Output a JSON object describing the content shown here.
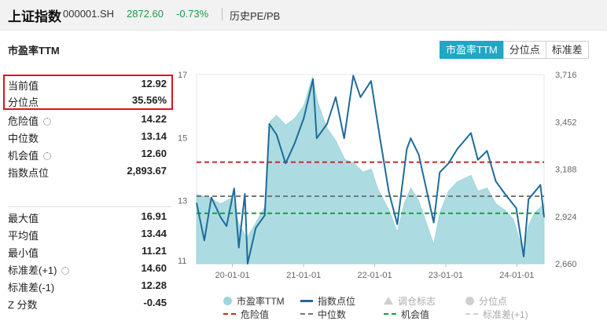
{
  "header": {
    "name": "上证指数",
    "code": "000001.SH",
    "price": "2872.60",
    "change": "-0.73%",
    "pe_link": "历史PE/PB"
  },
  "section_title": "市盈率TTM",
  "tabs": [
    {
      "label": "市盈率TTM",
      "active": true
    },
    {
      "label": "分位点",
      "active": false
    },
    {
      "label": "标准差",
      "active": false
    }
  ],
  "metrics": [
    {
      "label": "当前值",
      "value": "12.92"
    },
    {
      "label": "分位点",
      "value": "35.56%"
    },
    {
      "label": "危险值",
      "value": "14.22",
      "gear": true
    },
    {
      "label": "中位数",
      "value": "13.14"
    },
    {
      "label": "机会值",
      "value": "12.60",
      "gear": true
    },
    {
      "label": "指数点位",
      "value": "2,893.67"
    }
  ],
  "stats": [
    {
      "label": "最大值",
      "value": "16.91"
    },
    {
      "label": "平均值",
      "value": "13.44"
    },
    {
      "label": "最小值",
      "value": "11.21"
    },
    {
      "label": "标准差(+1)",
      "value": "14.60",
      "gear": true
    },
    {
      "label": "标准差(-1)",
      "value": "12.28"
    },
    {
      "label": "Z 分数",
      "value": "-0.45"
    }
  ],
  "colors": {
    "accent": "#1fa7c4",
    "area": "#9dd6dc",
    "index_line": "#1f6b9a",
    "danger": "#c62828",
    "median": "#777777",
    "opportunity": "#1a9a4a",
    "down": "#1a9a4a"
  },
  "chart_data": {
    "type": "line",
    "x_tick_labels": [
      "20-01-01",
      "21-01-01",
      "22-01-01",
      "23-01-01",
      "24-01-01"
    ],
    "x_range": [
      "2019-07-01",
      "2024-05-20"
    ],
    "left_axis": {
      "ticks": [
        "17",
        "15",
        "13",
        "11"
      ],
      "range": [
        11,
        17
      ]
    },
    "right_axis": {
      "ticks": [
        "3,716",
        "3,452",
        "3,188",
        "2,924",
        "2,660"
      ],
      "range": [
        2660,
        3716
      ]
    },
    "thresholds": {
      "danger": 14.22,
      "median": 13.14,
      "opportunity": 12.6
    },
    "series": [
      {
        "name": "市盈率TTM",
        "kind": "area",
        "axis": "left",
        "points": [
          [
            "2019-07-01",
            13.2
          ],
          [
            "2019-09-01",
            13.1
          ],
          [
            "2019-11-01",
            12.9
          ],
          [
            "2020-01-01",
            13.1
          ],
          [
            "2020-02-01",
            12.3
          ],
          [
            "2020-03-15",
            11.8
          ],
          [
            "2020-05-01",
            12.3
          ],
          [
            "2020-06-15",
            12.8
          ],
          [
            "2020-07-10",
            15.5
          ],
          [
            "2020-08-15",
            15.7
          ],
          [
            "2020-10-01",
            15.4
          ],
          [
            "2020-11-15",
            15.6
          ],
          [
            "2021-01-01",
            16.0
          ],
          [
            "2021-02-15",
            16.9
          ],
          [
            "2021-03-15",
            16.1
          ],
          [
            "2021-05-01",
            15.3
          ],
          [
            "2021-06-15",
            14.9
          ],
          [
            "2021-08-01",
            14.3
          ],
          [
            "2021-09-15",
            14.2
          ],
          [
            "2021-11-01",
            13.9
          ],
          [
            "2021-12-15",
            14.0
          ],
          [
            "2022-01-15",
            13.4
          ],
          [
            "2022-03-15",
            12.7
          ],
          [
            "2022-04-27",
            12.0
          ],
          [
            "2022-06-01",
            12.9
          ],
          [
            "2022-07-05",
            13.4
          ],
          [
            "2022-08-15",
            13.0
          ],
          [
            "2022-10-31",
            11.6
          ],
          [
            "2022-12-01",
            12.6
          ],
          [
            "2023-01-15",
            13.3
          ],
          [
            "2023-03-01",
            13.6
          ],
          [
            "2023-05-10",
            13.8
          ],
          [
            "2023-06-15",
            13.3
          ],
          [
            "2023-08-01",
            13.4
          ],
          [
            "2023-09-15",
            12.9
          ],
          [
            "2023-11-01",
            12.7
          ],
          [
            "2023-12-15",
            12.4
          ],
          [
            "2024-02-05",
            11.3
          ],
          [
            "2024-03-01",
            12.2
          ],
          [
            "2024-04-01",
            12.6
          ],
          [
            "2024-05-20",
            12.9
          ]
        ]
      },
      {
        "name": "指数点位",
        "kind": "line",
        "axis": "right",
        "points": [
          [
            "2019-07-01",
            3000
          ],
          [
            "2019-08-10",
            2790
          ],
          [
            "2019-09-15",
            3030
          ],
          [
            "2019-11-01",
            2920
          ],
          [
            "2019-12-02",
            2870
          ],
          [
            "2020-01-10",
            3080
          ],
          [
            "2020-02-03",
            2750
          ],
          [
            "2020-03-05",
            3050
          ],
          [
            "2020-03-19",
            2660
          ],
          [
            "2020-04-30",
            2860
          ],
          [
            "2020-06-15",
            2930
          ],
          [
            "2020-07-09",
            3440
          ],
          [
            "2020-08-15",
            3380
          ],
          [
            "2020-09-30",
            3220
          ],
          [
            "2020-11-15",
            3330
          ],
          [
            "2021-01-01",
            3470
          ],
          [
            "2021-02-18",
            3690
          ],
          [
            "2021-03-09",
            3360
          ],
          [
            "2021-05-01",
            3440
          ],
          [
            "2021-06-15",
            3590
          ],
          [
            "2021-07-28",
            3360
          ],
          [
            "2021-09-13",
            3710
          ],
          [
            "2021-10-20",
            3590
          ],
          [
            "2021-12-13",
            3680
          ],
          [
            "2022-01-28",
            3360
          ],
          [
            "2022-03-15",
            3060
          ],
          [
            "2022-04-27",
            2880
          ],
          [
            "2022-06-15",
            3300
          ],
          [
            "2022-07-05",
            3360
          ],
          [
            "2022-08-15",
            3270
          ],
          [
            "2022-10-31",
            2890
          ],
          [
            "2022-12-01",
            3170
          ],
          [
            "2023-01-15",
            3220
          ],
          [
            "2023-03-01",
            3300
          ],
          [
            "2023-05-10",
            3390
          ],
          [
            "2023-06-15",
            3240
          ],
          [
            "2023-08-01",
            3290
          ],
          [
            "2023-09-15",
            3120
          ],
          [
            "2023-11-01",
            3050
          ],
          [
            "2023-12-29",
            2970
          ],
          [
            "2024-02-05",
            2700
          ],
          [
            "2024-03-01",
            3020
          ],
          [
            "2024-04-01",
            3060
          ],
          [
            "2024-05-01",
            3100
          ],
          [
            "2024-05-20",
            2920
          ]
        ]
      }
    ],
    "legend": [
      {
        "label": "市盈率TTM",
        "marker": "circle",
        "color": "#9dd6dc",
        "enabled": true
      },
      {
        "label": "指数点位",
        "marker": "line",
        "color": "#1f6b9a",
        "enabled": true
      },
      {
        "label": "调仓标志",
        "marker": "triangle",
        "color": "#cfcfcf",
        "enabled": false
      },
      {
        "label": "分位点",
        "marker": "circle",
        "color": "#cfcfcf",
        "enabled": false
      },
      {
        "label": "危险值",
        "marker": "dash",
        "color": "#c62828",
        "enabled": true
      },
      {
        "label": "中位数",
        "marker": "dash",
        "color": "#777777",
        "enabled": true
      },
      {
        "label": "机会值",
        "marker": "dash",
        "color": "#1a9a4a",
        "enabled": true
      },
      {
        "label": "标准差(+1)",
        "marker": "dash",
        "color": "#cfcfcf",
        "enabled": false
      }
    ]
  }
}
